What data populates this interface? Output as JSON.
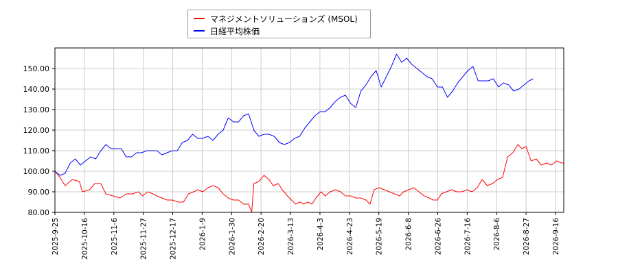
{
  "chart_data": {
    "type": "line",
    "ylim": [
      80,
      160
    ],
    "yticks": [
      "80.00",
      "90.00",
      "100.00",
      "110.00",
      "120.00",
      "130.00",
      "140.00",
      "150.00"
    ],
    "x_ticks": [
      "2025-9-25",
      "2025-10-16",
      "2025-11-6",
      "2025-11-27",
      "2025-12-17",
      "2026-1-9",
      "2026-1-30",
      "2026-2-20",
      "2026-3-13",
      "2026-4-3",
      "2026-4-23",
      "2026-5-19",
      "2026-6-8",
      "2026-6-26",
      "2026-7-16",
      "2026-8-6",
      "2026-8-27",
      "2026-9-16"
    ],
    "grid": true,
    "legend_position": "top",
    "series": [
      {
        "name": "マネジメントソリューションズ (MSOL)",
        "color": "#ff0000",
        "values": [
          [
            0,
            100
          ],
          [
            5,
            97
          ],
          [
            10,
            93
          ],
          [
            17,
            96
          ],
          [
            24,
            95
          ],
          [
            27,
            90
          ],
          [
            34,
            91
          ],
          [
            39,
            94
          ],
          [
            45,
            94
          ],
          [
            50,
            89
          ],
          [
            57,
            88
          ],
          [
            64,
            87
          ],
          [
            70,
            89
          ],
          [
            76,
            89
          ],
          [
            82,
            90
          ],
          [
            86,
            88
          ],
          [
            91,
            90
          ],
          [
            96,
            89
          ],
          [
            100,
            88
          ],
          [
            105,
            87
          ],
          [
            110,
            86
          ],
          [
            115,
            86
          ],
          [
            121,
            85
          ],
          [
            126,
            85
          ],
          [
            131,
            89
          ],
          [
            136,
            90
          ],
          [
            140,
            91
          ],
          [
            145,
            90
          ],
          [
            150,
            92
          ],
          [
            155,
            93
          ],
          [
            160,
            92
          ],
          [
            165,
            89
          ],
          [
            170,
            87
          ],
          [
            175,
            86
          ],
          [
            180,
            86
          ],
          [
            185,
            84
          ],
          [
            190,
            84
          ],
          [
            193,
            80
          ],
          [
            195,
            94
          ],
          [
            200,
            95
          ],
          [
            205,
            98
          ],
          [
            210,
            96
          ],
          [
            214,
            93
          ],
          [
            219,
            94
          ],
          [
            223,
            91
          ],
          [
            228,
            88
          ],
          [
            232,
            86
          ],
          [
            236,
            84
          ],
          [
            240,
            85
          ],
          [
            244,
            84
          ],
          [
            248,
            85
          ],
          [
            252,
            84
          ],
          [
            256,
            87
          ],
          [
            261,
            90
          ],
          [
            265,
            88
          ],
          [
            270,
            90
          ],
          [
            275,
            91
          ],
          [
            280,
            90
          ],
          [
            285,
            88
          ],
          [
            290,
            88
          ],
          [
            295,
            87
          ],
          [
            300,
            87
          ],
          [
            305,
            86
          ],
          [
            309,
            84
          ],
          [
            313,
            91
          ],
          [
            318,
            92
          ],
          [
            323,
            91
          ],
          [
            328,
            90
          ],
          [
            333,
            89
          ],
          [
            338,
            88
          ],
          [
            342,
            90
          ],
          [
            347,
            91
          ],
          [
            352,
            92
          ],
          [
            357,
            90
          ],
          [
            362,
            88
          ],
          [
            367,
            87
          ],
          [
            371,
            86
          ],
          [
            375,
            86
          ],
          [
            379,
            89
          ],
          [
            384,
            90
          ],
          [
            389,
            91
          ],
          [
            394,
            90
          ],
          [
            399,
            90
          ],
          [
            404,
            91
          ],
          [
            409,
            90
          ],
          [
            414,
            92
          ],
          [
            419,
            96
          ],
          [
            424,
            93
          ],
          [
            429,
            94
          ],
          [
            434,
            96
          ],
          [
            439,
            97
          ],
          [
            444,
            107
          ],
          [
            449,
            109
          ],
          [
            454,
            113
          ],
          [
            458,
            111
          ],
          [
            462,
            112
          ],
          [
            467,
            105
          ],
          [
            472,
            106
          ],
          [
            477,
            103
          ],
          [
            482,
            104
          ],
          [
            487,
            103
          ],
          [
            492,
            105
          ],
          [
            497,
            104
          ],
          [
            499,
            104
          ]
        ]
      },
      {
        "name": "日経平均株価",
        "color": "#0000ff",
        "values": [
          [
            0,
            100
          ],
          [
            5,
            98
          ],
          [
            10,
            99
          ],
          [
            15,
            104
          ],
          [
            20,
            106
          ],
          [
            25,
            103
          ],
          [
            30,
            105
          ],
          [
            35,
            107
          ],
          [
            40,
            106
          ],
          [
            45,
            110
          ],
          [
            50,
            113
          ],
          [
            55,
            111
          ],
          [
            60,
            111
          ],
          [
            65,
            111
          ],
          [
            70,
            107
          ],
          [
            75,
            107
          ],
          [
            80,
            109
          ],
          [
            85,
            109
          ],
          [
            90,
            110
          ],
          [
            95,
            110
          ],
          [
            100,
            110
          ],
          [
            105,
            108
          ],
          [
            110,
            109
          ],
          [
            115,
            110
          ],
          [
            120,
            110
          ],
          [
            125,
            114
          ],
          [
            130,
            115
          ],
          [
            135,
            118
          ],
          [
            140,
            116
          ],
          [
            145,
            116
          ],
          [
            150,
            117
          ],
          [
            155,
            115
          ],
          [
            160,
            118
          ],
          [
            165,
            120
          ],
          [
            170,
            126
          ],
          [
            175,
            124
          ],
          [
            180,
            124
          ],
          [
            185,
            127
          ],
          [
            190,
            128
          ],
          [
            195,
            120
          ],
          [
            200,
            117
          ],
          [
            205,
            118
          ],
          [
            210,
            118
          ],
          [
            215,
            117
          ],
          [
            220,
            114
          ],
          [
            225,
            113
          ],
          [
            230,
            114
          ],
          [
            235,
            116
          ],
          [
            240,
            117
          ],
          [
            245,
            121
          ],
          [
            250,
            124
          ],
          [
            255,
            127
          ],
          [
            260,
            129
          ],
          [
            265,
            129
          ],
          [
            270,
            131
          ],
          [
            275,
            134
          ],
          [
            280,
            136
          ],
          [
            285,
            137
          ],
          [
            290,
            133
          ],
          [
            295,
            131
          ],
          [
            300,
            139
          ],
          [
            305,
            142
          ],
          [
            310,
            146
          ],
          [
            315,
            149
          ],
          [
            320,
            141
          ],
          [
            325,
            146
          ],
          [
            330,
            151
          ],
          [
            335,
            157
          ],
          [
            340,
            153
          ],
          [
            345,
            155
          ],
          [
            350,
            152
          ],
          [
            355,
            150
          ],
          [
            360,
            148
          ],
          [
            365,
            146
          ],
          [
            370,
            145
          ],
          [
            375,
            141
          ],
          [
            380,
            141
          ],
          [
            385,
            136
          ],
          [
            390,
            139
          ],
          [
            395,
            143
          ],
          [
            400,
            146
          ],
          [
            405,
            149
          ],
          [
            410,
            151
          ],
          [
            415,
            144
          ],
          [
            420,
            144
          ],
          [
            425,
            144
          ],
          [
            430,
            145
          ],
          [
            435,
            141
          ],
          [
            440,
            143
          ],
          [
            445,
            142
          ],
          [
            450,
            139
          ],
          [
            455,
            140
          ],
          [
            460,
            142
          ],
          [
            465,
            144
          ],
          [
            469,
            145
          ]
        ]
      }
    ],
    "x_max": 499
  }
}
